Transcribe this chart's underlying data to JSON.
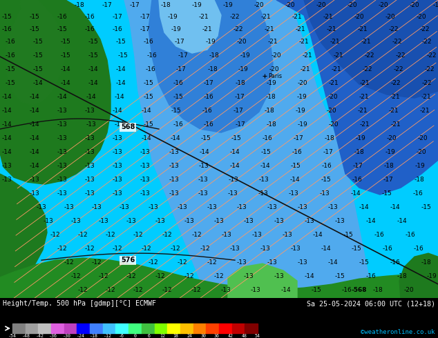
{
  "title_left": "Height/Temp. 500 hPa [gdmp][°C] ECMWF",
  "title_right": "Sa 25-05-2024 06:00 UTC (12+18)",
  "credit": "©weatheronline.co.uk",
  "colorbar_values": [
    -54,
    -48,
    -42,
    -36,
    -30,
    -24,
    -18,
    -12,
    -6,
    0,
    6,
    12,
    18,
    24,
    30,
    36,
    42,
    48,
    54
  ],
  "colorbar_colors": [
    "#808080",
    "#9f9f9f",
    "#bfbfbf",
    "#df60df",
    "#bf40bf",
    "#0000ff",
    "#4080ff",
    "#40c0ff",
    "#40ffff",
    "#40ff80",
    "#40c040",
    "#80ff00",
    "#ffff00",
    "#ffc000",
    "#ff8000",
    "#ff4000",
    "#ff0000",
    "#c00000",
    "#800000"
  ],
  "bg_color": "#000000",
  "cyan_bg": "#00cfff",
  "light_blue": "#40b0ff",
  "med_blue": "#3070e0",
  "dark_blue": "#2050c8",
  "land_dark": "#1a6b1a",
  "land_med": "#228B22",
  "land_light": "#2aab2a",
  "land_light2": "#60c060",
  "contour_color_temp": "#ff9966",
  "contour_color_gph": "#000000",
  "contour_color_coast": "#aaaaaa",
  "text_color": "#ffffff",
  "credit_color": "#00bfff",
  "label_fontsize": 7
}
